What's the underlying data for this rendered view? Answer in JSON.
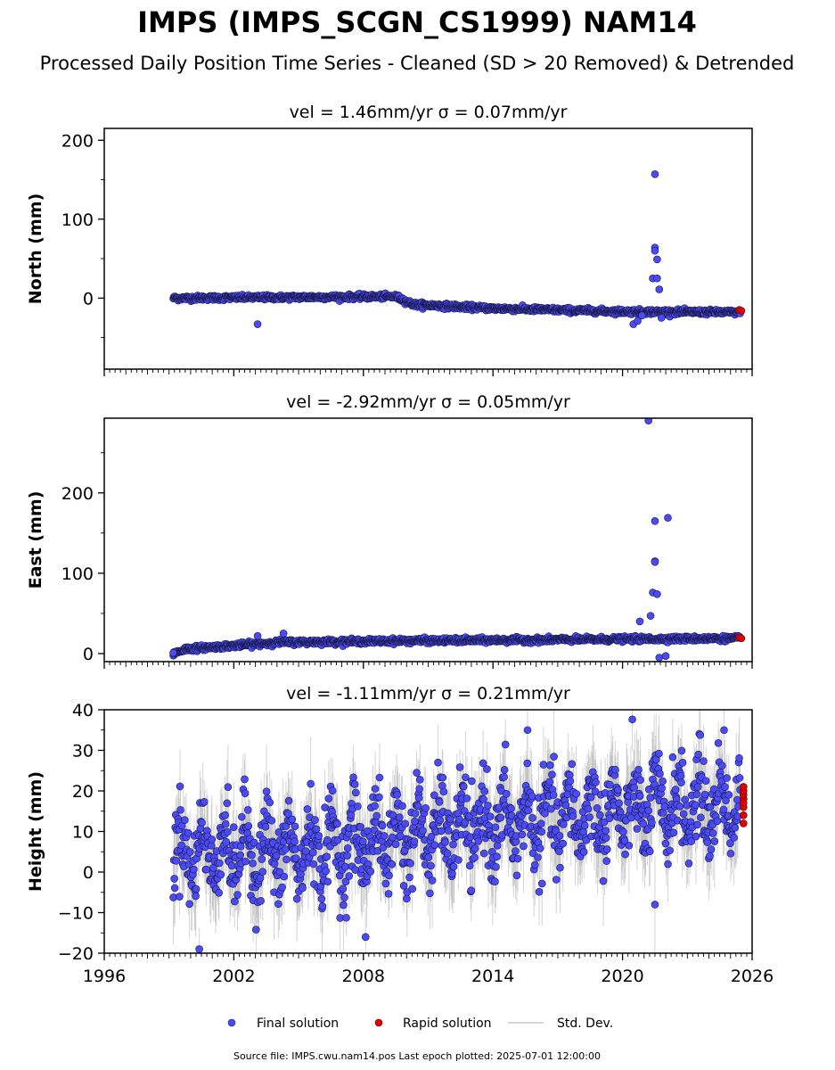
{
  "title": "IMPS (IMPS_SCGN_CS1999) NAM14",
  "subtitle": "Processed Daily Position Time Series - Cleaned (SD > 20 Removed) & Detrended",
  "footer": "Source file: IMPS.cwu.nam14.pos  Last epoch plotted: 2025-07-01 12:00:00",
  "colors": {
    "final": "#4b4bf5",
    "rapid": "#e00000",
    "stddev": "#b0b0b0",
    "edge": "#1a1a4a"
  },
  "legend": [
    {
      "label": "Final solution",
      "color": "#4b4bf5",
      "kind": "dot"
    },
    {
      "label": "Rapid solution",
      "color": "#e00000",
      "kind": "dot"
    },
    {
      "label": "Std. Dev.",
      "color": "#c8c8c8",
      "kind": "line"
    }
  ],
  "chart_data": [
    {
      "type": "scatter",
      "title": "vel = 1.46mm/yr   σ = 0.07mm/yr",
      "ylabel": "North (mm)",
      "xlim": [
        1996,
        2026
      ],
      "ylim": [
        -90,
        215
      ],
      "x_ticks": [
        1996,
        2002,
        2008,
        2014,
        2020,
        2026
      ],
      "y_ticks": [
        0,
        100,
        200
      ],
      "trend": [
        [
          1999.2,
          0
        ],
        [
          2009.5,
          2
        ],
        [
          2010.3,
          -8
        ],
        [
          2014,
          -13
        ],
        [
          2020,
          -17
        ],
        [
          2025.5,
          -18
        ]
      ],
      "noise": 1.5,
      "err": 3,
      "outliers": [
        [
          2003.1,
          -33
        ],
        [
          2021.5,
          157
        ],
        [
          2021.5,
          64
        ],
        [
          2021.5,
          60
        ],
        [
          2021.6,
          49
        ],
        [
          2021.4,
          25
        ],
        [
          2021.6,
          25
        ],
        [
          2021.7,
          11
        ],
        [
          2020.5,
          -33
        ],
        [
          2020.7,
          -29
        ],
        [
          2021.8,
          -25
        ],
        [
          2020.9,
          -22
        ]
      ],
      "rapid": [
        [
          2025.4,
          -15
        ],
        [
          2025.5,
          -16
        ]
      ]
    },
    {
      "type": "scatter",
      "title": "vel = -2.92mm/yr   σ = 0.05mm/yr",
      "ylabel": "East (mm)",
      "xlim": [
        1996,
        2026
      ],
      "ylim": [
        -10,
        293
      ],
      "x_ticks": [
        1996,
        2002,
        2008,
        2014,
        2020,
        2026
      ],
      "y_ticks": [
        0,
        100,
        200
      ],
      "trend": [
        [
          1999.2,
          0
        ],
        [
          1999.8,
          6
        ],
        [
          2002,
          10
        ],
        [
          2004,
          14
        ],
        [
          2010,
          16
        ],
        [
          2016,
          17
        ],
        [
          2020,
          18
        ],
        [
          2025.5,
          19
        ]
      ],
      "noise": 1.5,
      "err": 3,
      "outliers": [
        [
          1999.2,
          1
        ],
        [
          2003.1,
          22
        ],
        [
          2004.3,
          25
        ],
        [
          2021.2,
          290
        ],
        [
          2021.5,
          165
        ],
        [
          2022.1,
          169
        ],
        [
          2021.5,
          115
        ],
        [
          2021.5,
          114
        ],
        [
          2021.4,
          76
        ],
        [
          2021.6,
          74
        ],
        [
          2021.3,
          47
        ],
        [
          2021.7,
          -5
        ],
        [
          2022.0,
          -3
        ],
        [
          2020.8,
          40
        ]
      ],
      "rapid": [
        [
          2025.4,
          20
        ],
        [
          2025.5,
          19
        ]
      ]
    },
    {
      "type": "scatter",
      "title": "vel = -1.11mm/yr   σ = 0.21mm/yr",
      "ylabel": "Height (mm)",
      "xlim": [
        1996,
        2026
      ],
      "ylim": [
        -20,
        40
      ],
      "x_ticks": [
        1996,
        2002,
        2008,
        2014,
        2020,
        2026
      ],
      "y_ticks": [
        -20,
        -10,
        0,
        10,
        20,
        30,
        40
      ],
      "trend": [
        [
          1999.2,
          5
        ],
        [
          2005,
          5
        ],
        [
          2010,
          9
        ],
        [
          2015,
          12
        ],
        [
          2020,
          15
        ],
        [
          2025.5,
          17
        ]
      ],
      "noise": 7,
      "err": 8,
      "outliers": [
        [
          2000.4,
          -19
        ],
        [
          2015.6,
          35
        ],
        [
          2008.1,
          -16
        ],
        [
          2024.7,
          35
        ],
        [
          2021.5,
          -8
        ]
      ],
      "rapid": [
        [
          2025.6,
          12
        ],
        [
          2025.6,
          14
        ],
        [
          2025.6,
          16
        ],
        [
          2025.6,
          18
        ],
        [
          2025.6,
          19
        ],
        [
          2025.6,
          20
        ],
        [
          2025.6,
          21
        ],
        [
          2025.6,
          17
        ]
      ]
    }
  ]
}
